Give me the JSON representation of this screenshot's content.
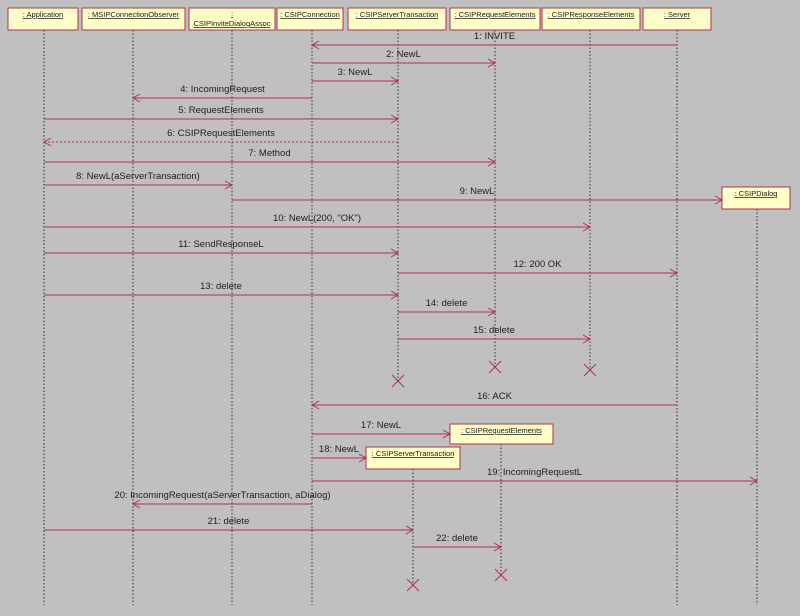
{
  "participants": [
    {
      "id": "app",
      "label": ": Application"
    },
    {
      "id": "obs",
      "label": ": MSIPConnectionObserver"
    },
    {
      "id": "assoc",
      "label": ":",
      "label2": "CSIPInviteDialogAssoc"
    },
    {
      "id": "conn",
      "label": ": CSIPConnection"
    },
    {
      "id": "stx",
      "label": ": CSIPServerTransaction"
    },
    {
      "id": "req",
      "label": ": CSIPRequestElements"
    },
    {
      "id": "resp",
      "label": ": CSIPResponseElements"
    },
    {
      "id": "srv",
      "label": ": Server"
    },
    {
      "id": "dlg",
      "label": ": CSIPDialog"
    },
    {
      "id": "req2",
      "label": ": CSIPRequestElements"
    },
    {
      "id": "stx2",
      "label": ": CSIPServerTransaction"
    }
  ],
  "messages": [
    {
      "from": "srv",
      "to": "conn",
      "label": "1: INVITE"
    },
    {
      "from": "conn",
      "to": "req",
      "label": "2: NewL"
    },
    {
      "from": "conn",
      "to": "stx",
      "label": "3: NewL"
    },
    {
      "from": "conn",
      "to": "obs",
      "label": "4: IncomingRequest"
    },
    {
      "from": "app",
      "to": "stx",
      "label": "5: RequestElements"
    },
    {
      "from": "stx",
      "to": "app",
      "label": "6: CSIPRequestElements",
      "return": true
    },
    {
      "from": "app",
      "to": "req",
      "label": "7: Method"
    },
    {
      "from": "app",
      "to": "assoc",
      "label": "8: NewL(aServerTransaction)"
    },
    {
      "from": "assoc",
      "to": "dlg",
      "label": "9: NewL",
      "create": true
    },
    {
      "from": "app",
      "to": "resp",
      "label": "10: NewL(200, \"OK\")"
    },
    {
      "from": "app",
      "to": "stx",
      "label": "11: SendResponseL"
    },
    {
      "from": "stx",
      "to": "srv",
      "label": "12: 200 OK"
    },
    {
      "from": "app",
      "to": "stx",
      "label": "13: delete"
    },
    {
      "from": "stx",
      "to": "req",
      "label": "14: delete"
    },
    {
      "from": "stx",
      "to": "resp",
      "label": "15: delete"
    },
    {
      "from": "srv",
      "to": "conn",
      "label": "16: ACK"
    },
    {
      "from": "conn",
      "to": "req2",
      "label": "17: NewL",
      "create": true
    },
    {
      "from": "conn",
      "to": "stx2",
      "label": "18: NewL",
      "create": true
    },
    {
      "from": "conn",
      "to": "dlg",
      "label": "19: IncomingRequestL"
    },
    {
      "from": "conn",
      "to": "obs",
      "label": "20: IncomingRequest(aServerTransaction, aDialog)"
    },
    {
      "from": "app",
      "to": "stx2",
      "label": "21: delete"
    },
    {
      "from": "stx2",
      "to": "req2",
      "label": "22: delete"
    }
  ],
  "destroyed": [
    "stx",
    "req",
    "resp",
    "stx2",
    "req2"
  ],
  "colors": {
    "background": "#c0c0c0",
    "object_fill": "#ffffc8",
    "line": "#b03050"
  }
}
